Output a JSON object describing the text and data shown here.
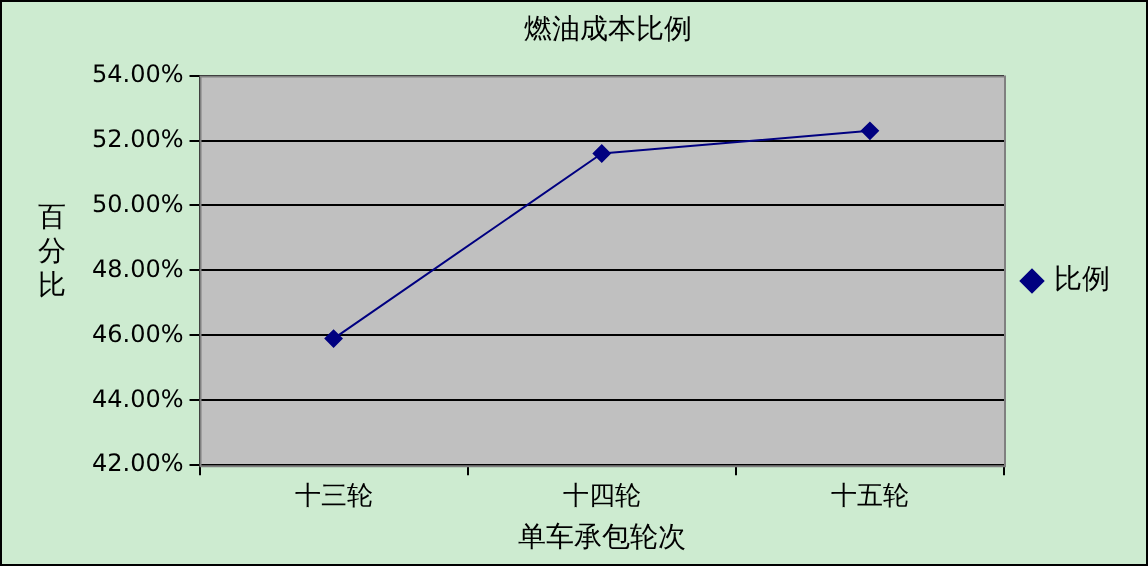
{
  "chart_data": {
    "type": "line",
    "title": "燃油成本比例",
    "xlabel": "单车承包轮次",
    "ylabel": "百分比",
    "categories": [
      "十三轮",
      "十四轮",
      "十五轮"
    ],
    "series": [
      {
        "name": "比例",
        "color": "#000080",
        "values": [
          45.9,
          51.6,
          52.3
        ]
      }
    ],
    "ylim": [
      42,
      54
    ],
    "yticks": [
      {
        "value": 42,
        "label": "42.00%"
      },
      {
        "value": 44,
        "label": "44.00%"
      },
      {
        "value": 46,
        "label": "46.00%"
      },
      {
        "value": 48,
        "label": "48.00%"
      },
      {
        "value": 50,
        "label": "50.00%"
      },
      {
        "value": 52,
        "label": "52.00%"
      },
      {
        "value": 54,
        "label": "54.00%"
      }
    ],
    "grid": "y",
    "legend": "right",
    "marker": "diamond",
    "line_style": "solid"
  }
}
